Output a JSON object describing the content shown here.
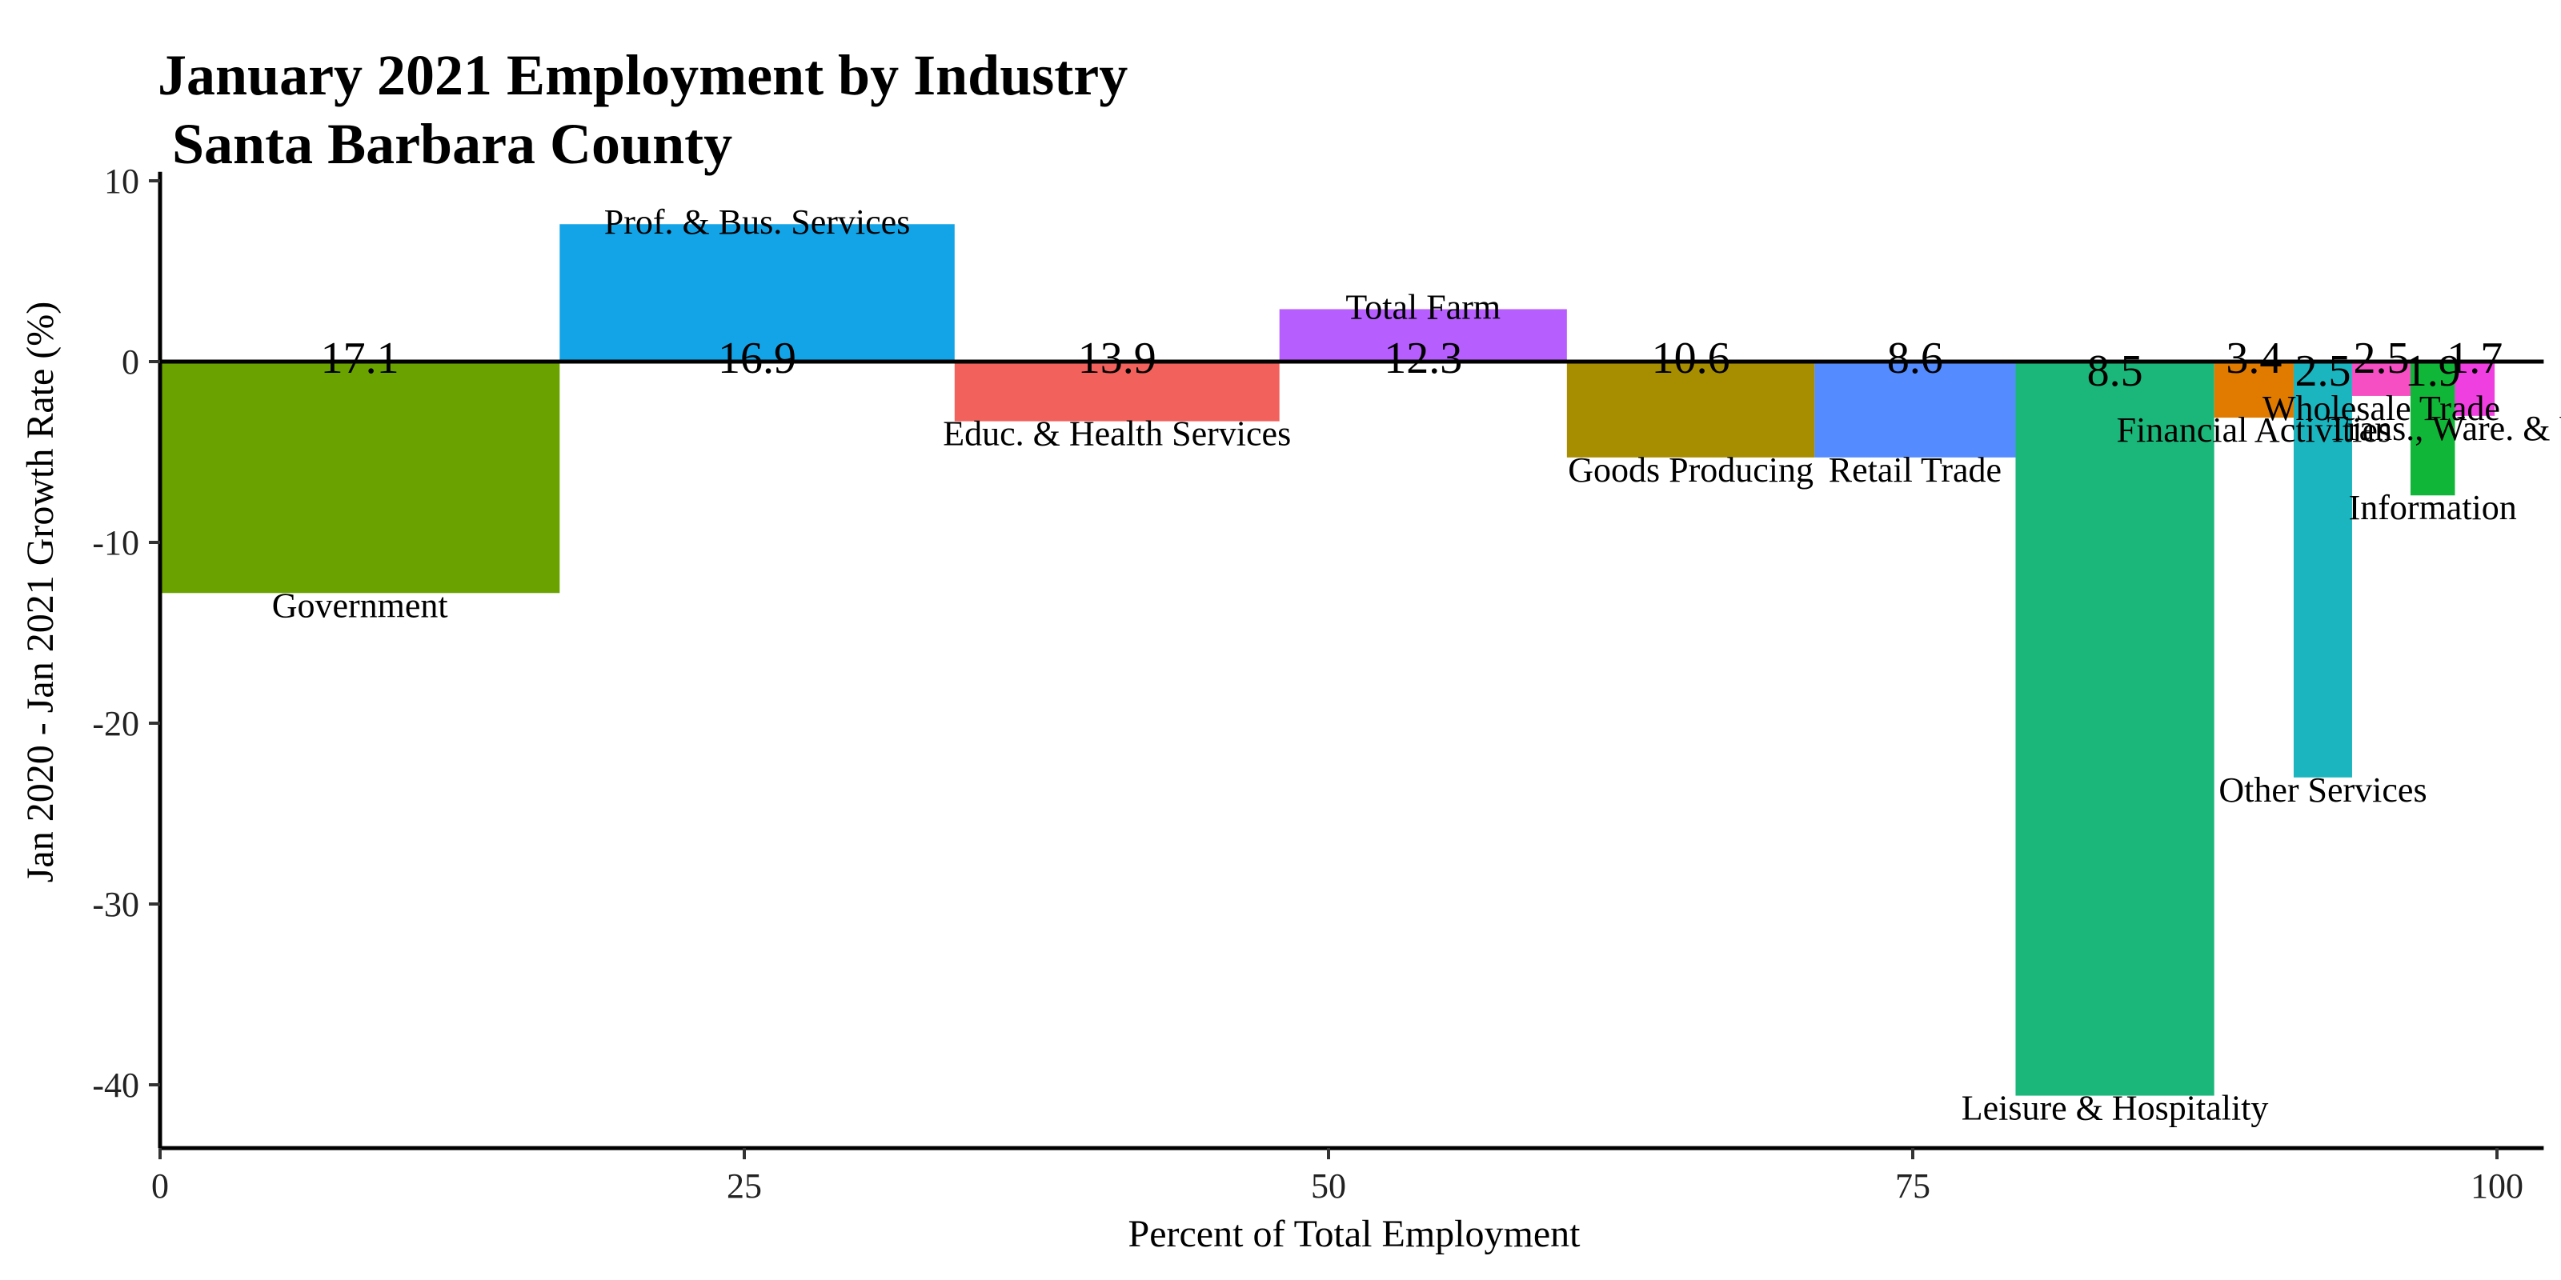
{
  "chart_data": {
    "type": "bar",
    "title": [
      "January 2021 Employment by Industry",
      " Santa Barbara County"
    ],
    "xlabel": "Percent of Total Employment",
    "ylabel": "Jan 2020 - Jan 2021 Growth Rate (%)",
    "xlim": [
      0,
      102
    ],
    "ylim": [
      -43.5,
      10.5
    ],
    "x_ticks": [
      0,
      25,
      50,
      75,
      100
    ],
    "x_tick_labels": [
      "0",
      "25",
      "50",
      "75",
      "100"
    ],
    "y_ticks": [
      10,
      0,
      -10,
      -20,
      -30,
      -40
    ],
    "y_tick_labels": [
      "10",
      "0",
      "-10",
      "-20",
      "-30",
      "-40"
    ],
    "grid": false,
    "legend": "none",
    "bars": [
      {
        "industry": "Government",
        "share": 17.1,
        "share_label": "17.1",
        "growth": -12.8,
        "color": "#6aa300"
      },
      {
        "industry": "Prof. & Bus. Services",
        "share": 16.9,
        "share_label": "16.9",
        "growth": 7.6,
        "color": "#13a4e8"
      },
      {
        "industry": "Educ. & Health Services",
        "share": 13.9,
        "share_label": "13.9",
        "growth": -3.3,
        "color": "#f2615c"
      },
      {
        "industry": "Total Farm",
        "share": 12.3,
        "share_label": "12.3",
        "growth": 2.9,
        "color": "#b75eff"
      },
      {
        "industry": "Goods Producing",
        "share": 10.6,
        "share_label": "10.6",
        "growth": -5.3,
        "color": "#a68e00"
      },
      {
        "industry": "Retail Trade",
        "share": 8.6,
        "share_label": "8.6",
        "growth": -5.3,
        "color": "#548bff"
      },
      {
        "industry": "Leisure & Hospitality",
        "share": 8.5,
        "share_label": "8.5",
        "growth": -40.6,
        "color": "#1bb679"
      },
      {
        "industry": "Financial Activities",
        "share": 3.4,
        "share_label": "3.4",
        "growth": -3.1,
        "color": "#e07b00"
      },
      {
        "industry": "Other Services",
        "share": 2.5,
        "share_label": "2.5",
        "growth": -23.0,
        "color": "#1bb5bf"
      },
      {
        "industry": "Wholesale Trade",
        "share": 2.5,
        "share_label": "2.5",
        "growth": -1.9,
        "color": "#f64fc4"
      },
      {
        "industry": "Information",
        "share": 1.9,
        "share_label": "1.9",
        "growth": -7.4,
        "color": "#10b637"
      },
      {
        "industry": "Trans., Ware. & Util.",
        "share": 1.7,
        "share_label": "1.7",
        "growth": -3.0,
        "color": "#f03fe0"
      }
    ]
  }
}
